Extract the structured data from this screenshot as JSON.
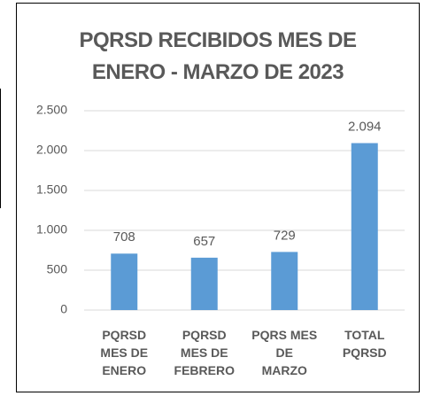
{
  "chart_data": {
    "type": "bar",
    "title": "PQRSD RECIBIDOS MES DE\nENERO - MARZO DE 2023",
    "categories": [
      "PQRSD\nMES DE\nENERO",
      "PQRSD\nMES DE\nFEBRERO",
      "PQRS MES\nDE\nMARZO",
      "TOTAL\nPQRSD"
    ],
    "values": [
      708,
      657,
      729,
      2094
    ],
    "value_labels": [
      "708",
      "657",
      "729",
      "2.094"
    ],
    "color": "#5b9bd5",
    "ylim": [
      0,
      2500
    ],
    "yticks": [
      0,
      500,
      {
        "value": 1000,
        "label": "1.000"
      },
      {
        "value": 1500,
        "label": "1.500"
      },
      {
        "value": 2000,
        "label": "2.000"
      },
      {
        "value": 2500,
        "label": "2.500"
      }
    ],
    "grid": true
  }
}
